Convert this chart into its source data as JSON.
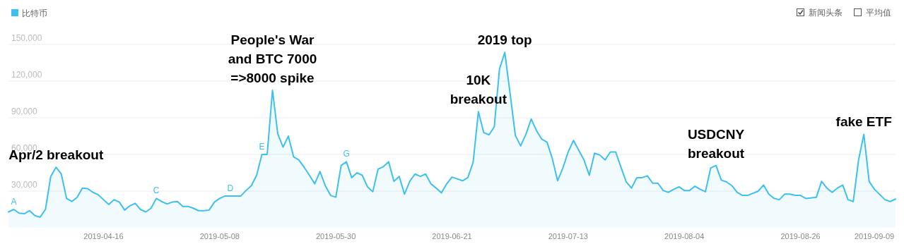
{
  "chart_data": {
    "type": "area",
    "xlim": [
      "2019-03-29",
      "2019-09-13"
    ],
    "xticks": [
      "2019-04-16",
      "2019-05-08",
      "2019-05-30",
      "2019-06-21",
      "2019-07-13",
      "2019-08-04",
      "2019-08-26",
      "2019-09-09"
    ],
    "ylim": [
      0,
      150000
    ],
    "yticks": [
      {
        "value": 30000,
        "label": "30,000"
      },
      {
        "value": 60000,
        "label": "60,000"
      },
      {
        "value": 90000,
        "label": "90,000"
      },
      {
        "value": 120000,
        "label": "120,000"
      },
      {
        "value": 150000,
        "label": "150,000"
      }
    ],
    "grid": "y",
    "legend": "top left",
    "x": [
      "2019-03-29",
      "2019-03-30",
      "2019-03-31",
      "2019-04-01",
      "2019-04-02",
      "2019-04-03",
      "2019-04-04",
      "2019-04-05",
      "2019-04-06",
      "2019-04-07",
      "2019-04-08",
      "2019-04-09",
      "2019-04-10",
      "2019-04-11",
      "2019-04-12",
      "2019-04-13",
      "2019-04-14",
      "2019-04-15",
      "2019-04-16",
      "2019-04-17",
      "2019-04-18",
      "2019-04-19",
      "2019-04-20",
      "2019-04-21",
      "2019-04-22",
      "2019-04-23",
      "2019-04-24",
      "2019-04-25",
      "2019-04-26",
      "2019-04-27",
      "2019-04-28",
      "2019-04-29",
      "2019-04-30",
      "2019-05-01",
      "2019-05-02",
      "2019-05-03",
      "2019-05-04",
      "2019-05-05",
      "2019-05-06",
      "2019-05-07",
      "2019-05-08",
      "2019-05-09",
      "2019-05-12",
      "2019-05-13",
      "2019-05-14",
      "2019-05-15",
      "2019-05-16",
      "2019-05-17",
      "2019-05-18",
      "2019-05-19",
      "2019-05-20",
      "2019-05-21",
      "2019-05-22",
      "2019-05-23",
      "2019-05-24",
      "2019-05-25",
      "2019-05-26",
      "2019-05-27",
      "2019-05-28",
      "2019-05-29",
      "2019-05-30",
      "2019-05-31",
      "2019-06-01",
      "2019-06-02",
      "2019-06-03",
      "2019-06-04",
      "2019-06-05",
      "2019-06-06",
      "2019-06-07",
      "2019-06-08",
      "2019-06-09",
      "2019-06-10",
      "2019-06-11",
      "2019-06-12",
      "2019-06-13",
      "2019-06-14",
      "2019-06-15",
      "2019-06-16",
      "2019-06-17",
      "2019-06-18",
      "2019-06-19",
      "2019-06-20",
      "2019-06-21",
      "2019-06-22",
      "2019-06-23",
      "2019-06-24",
      "2019-06-25",
      "2019-06-26",
      "2019-06-27",
      "2019-06-28",
      "2019-06-29",
      "2019-06-30",
      "2019-07-01",
      "2019-07-02",
      "2019-07-03",
      "2019-07-04",
      "2019-07-05",
      "2019-07-06",
      "2019-07-07",
      "2019-07-08",
      "2019-07-09",
      "2019-07-10",
      "2019-07-11",
      "2019-07-12",
      "2019-07-13",
      "2019-07-14",
      "2019-07-15",
      "2019-07-16",
      "2019-07-17",
      "2019-07-18",
      "2019-07-19",
      "2019-07-20",
      "2019-07-21",
      "2019-07-22",
      "2019-07-23",
      "2019-07-24",
      "2019-07-25",
      "2019-07-26",
      "2019-07-27",
      "2019-07-28",
      "2019-07-29",
      "2019-07-30",
      "2019-07-31",
      "2019-08-01",
      "2019-08-02",
      "2019-08-03",
      "2019-08-04",
      "2019-08-05",
      "2019-08-06",
      "2019-08-07",
      "2019-08-08",
      "2019-08-09",
      "2019-08-10",
      "2019-08-11",
      "2019-08-12",
      "2019-08-13",
      "2019-08-14",
      "2019-08-15",
      "2019-08-16",
      "2019-08-18",
      "2019-08-19",
      "2019-08-20",
      "2019-08-21",
      "2019-08-22",
      "2019-08-23",
      "2019-08-24",
      "2019-08-25",
      "2019-08-26",
      "2019-08-27",
      "2019-08-29",
      "2019-08-30",
      "2019-08-31",
      "2019-09-01",
      "2019-09-02",
      "2019-09-03",
      "2019-09-04",
      "2019-09-05",
      "2019-09-06",
      "2019-09-07",
      "2019-09-08",
      "2019-09-09",
      "2019-09-11",
      "2019-09-12",
      "2019-09-13"
    ],
    "series": [
      {
        "name": "比特币",
        "color": "#3ec0ee",
        "values": [
          13000,
          15000,
          12000,
          11500,
          14000,
          10000,
          8700,
          15000,
          42000,
          49500,
          44000,
          24000,
          21500,
          25000,
          32500,
          32000,
          29000,
          27000,
          23000,
          19000,
          23000,
          21000,
          14500,
          18000,
          20000,
          15000,
          13000,
          16000,
          24000,
          21500,
          19500,
          21000,
          21500,
          17500,
          17500,
          16000,
          14000,
          14000,
          14500,
          21000,
          24000,
          26000,
          26000,
          30500,
          34500,
          43000,
          60000,
          60000,
          112500,
          77000,
          66000,
          75000,
          58000,
          55500,
          49500,
          43000,
          36000,
          46000,
          34500,
          26500,
          25000,
          51000,
          54000,
          41000,
          45000,
          43000,
          33500,
          29500,
          48000,
          50000,
          54000,
          38000,
          42000,
          27500,
          38000,
          44000,
          42000,
          44000,
          36000,
          32500,
          28500,
          36000,
          41500,
          40000,
          38500,
          41000,
          53500,
          95000,
          78000,
          76000,
          82500,
          130000,
          143500,
          110000,
          75500,
          67000,
          76500,
          89000,
          79500,
          72500,
          70000,
          56500,
          38500,
          49000,
          62000,
          71500,
          63500,
          55500,
          43000,
          61000,
          59500,
          55500,
          62000,
          62000,
          49500,
          37500,
          32500,
          41000,
          41000,
          42500,
          36500,
          36500,
          30500,
          29000,
          31500,
          33500,
          30500,
          30500,
          34000,
          31500,
          29500,
          49000,
          51000,
          39000,
          37500,
          34500,
          29000,
          26500,
          26500,
          30000,
          35000,
          27500,
          24000,
          23000,
          27500,
          27500,
          26500,
          26500,
          24000,
          25000,
          38000,
          32500,
          29000,
          32500,
          35000,
          23000,
          21500,
          55500,
          76500,
          38000,
          31500,
          23000,
          21500,
          23500
        ]
      }
    ],
    "annotations": [
      "新闻头条",
      "平均值",
      {
        "text": "A",
        "x": "2019-03-30",
        "y": 15000
      },
      {
        "text": "C",
        "x": "2019-04-26",
        "y": 24000
      },
      {
        "text": "D",
        "x": "2019-05-10",
        "y": 26000
      },
      {
        "text": "E",
        "x": "2019-05-16",
        "y": 60000
      },
      {
        "text": "G",
        "x": "2019-06-01",
        "y": 54000
      },
      {
        "text": "Apr/2 breakout",
        "x": "2019-04-07",
        "y": 49500
      },
      {
        "text": "People's War\nand BTC 7000\n=>8000 spike",
        "x": "2019-05-18",
        "y": 112500
      },
      {
        "text": "10K\nbreakout",
        "x": "2019-06-26",
        "y": 95000
      },
      {
        "text": "2019 top",
        "x": "2019-07-01",
        "y": 143500
      },
      {
        "text": "USDCNY\nbreakout",
        "x": "2019-08-10",
        "y": 51000
      },
      {
        "text": "fake ETF",
        "x": "2019-09-07",
        "y": 76500
      }
    ]
  }
}
